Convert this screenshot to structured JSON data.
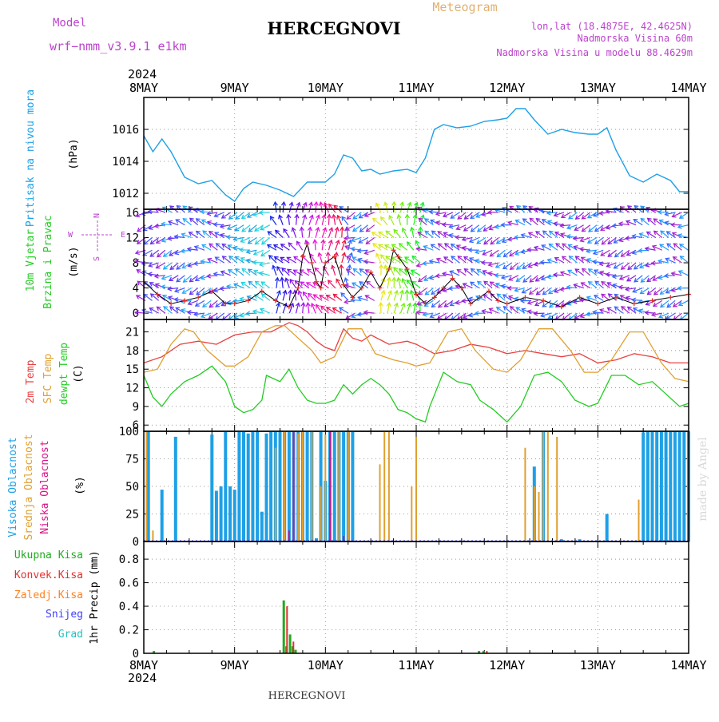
{
  "header": {
    "model_label": "Model",
    "model_name": "wrf−nmm_v3.9.1 e1km",
    "station": "HERCEGNOVI",
    "meteogram": "Meteogram",
    "lonlat": "lon,lat (18.4875E, 42.4625N)",
    "altitude": "Nadmorska Visina 60m",
    "model_altitude": "Nadmorska Visina u modelu 88.4629m",
    "footer_station": "HERCEGNOVI",
    "watermark": "made by Angel"
  },
  "colors": {
    "pressure": "#1ea0e6",
    "temp2m": "#e84040",
    "sfc": "#e0a030",
    "dewpt": "#22cc22",
    "high_cloud": "#1ea0e6",
    "mid_cloud": "#e0a030",
    "low_cloud": "#dd1188",
    "total_precip": "#22aa22",
    "conv_precip": "#e03030",
    "frz_precip": "#ff8020",
    "snow": "#4040ff",
    "grad": "#20c0c0",
    "wind_speed": "#e03030"
  },
  "time_axis": {
    "year": "2024",
    "labels": [
      "8MAY",
      "9MAY",
      "10MAY",
      "11MAY",
      "12MAY",
      "13MAY",
      "14MAY"
    ]
  },
  "chart_data": [
    {
      "type": "line",
      "name": "pressure",
      "ylabel_top": "Pritisak na nivou mora",
      "ylabel": "(hPa)",
      "yticks": [
        "1012",
        "1014",
        "1016"
      ],
      "ylim": [
        1011,
        1018
      ],
      "x_days": [
        0,
        0.1,
        0.2,
        0.3,
        0.45,
        0.6,
        0.75,
        0.9,
        1.0,
        1.1,
        1.2,
        1.35,
        1.5,
        1.65,
        1.8,
        1.9,
        2.0,
        2.1,
        2.2,
        2.3,
        2.4,
        2.5,
        2.6,
        2.75,
        2.9,
        3.0,
        3.1,
        3.2,
        3.3,
        3.45,
        3.6,
        3.75,
        3.9,
        4.0,
        4.1,
        4.2,
        4.3,
        4.45,
        4.6,
        4.75,
        4.9,
        5.0,
        5.1,
        5.2,
        5.35,
        5.5,
        5.65,
        5.8,
        5.9,
        6.0
      ],
      "values": [
        1015.6,
        1014.6,
        1015.4,
        1014.6,
        1013.0,
        1012.6,
        1012.8,
        1011.9,
        1011.5,
        1012.3,
        1012.7,
        1012.5,
        1012.2,
        1011.8,
        1012.7,
        1012.7,
        1012.7,
        1013.2,
        1014.4,
        1014.2,
        1013.4,
        1013.5,
        1013.2,
        1013.4,
        1013.5,
        1013.3,
        1014.2,
        1016.0,
        1016.3,
        1016.1,
        1016.2,
        1016.5,
        1016.6,
        1016.7,
        1017.3,
        1017.3,
        1016.6,
        1015.7,
        1016.0,
        1015.8,
        1015.7,
        1015.7,
        1016.1,
        1014.7,
        1013.1,
        1012.7,
        1013.2,
        1012.8,
        1012.1,
        1012.1
      ]
    },
    {
      "type": "line",
      "name": "wind",
      "ylabel_top": "10m Vjetar",
      "ylabel_top2": "Brzina i Pravac",
      "ylabel": "(m/s)",
      "compass": [
        "N",
        "E",
        "W",
        "S"
      ],
      "yticks": [
        "0",
        "4",
        "8",
        "12",
        "16"
      ],
      "ylim": [
        -1,
        16.5
      ],
      "x_days": [
        0,
        0.15,
        0.3,
        0.45,
        0.6,
        0.75,
        0.9,
        1.0,
        1.15,
        1.3,
        1.45,
        1.6,
        1.7,
        1.75,
        1.8,
        1.85,
        1.9,
        1.95,
        2.0,
        2.1,
        2.2,
        2.3,
        2.4,
        2.5,
        2.6,
        2.7,
        2.75,
        2.8,
        2.9,
        3.0,
        3.1,
        3.2,
        3.3,
        3.4,
        3.5,
        3.6,
        3.7,
        3.8,
        3.9,
        4.0,
        4.2,
        4.4,
        4.6,
        4.8,
        5.0,
        5.2,
        5.4,
        5.6,
        5.8,
        6.0
      ],
      "values": [
        5,
        3,
        1.5,
        2,
        2.5,
        3.5,
        1.5,
        1.5,
        2,
        3.5,
        2,
        1,
        4,
        9,
        11,
        8,
        5,
        4,
        8,
        9,
        4.5,
        2.5,
        4,
        6.5,
        4,
        7,
        10,
        9,
        7,
        3,
        1.5,
        2.5,
        4,
        5.5,
        4,
        1.5,
        2.5,
        3.5,
        2,
        1.5,
        2.5,
        2,
        1,
        2.5,
        1.5,
        2.5,
        1.5,
        2,
        2.5,
        3
      ]
    },
    {
      "type": "line",
      "name": "temperature",
      "ylabel_top": "2m Temp",
      "ylabel_top2": "SFC Temp",
      "ylabel_top3": "dewpt Temp",
      "ylabel": "(C)",
      "yticks": [
        "6",
        "9",
        "12",
        "15",
        "18",
        "21"
      ],
      "ylim": [
        5,
        23
      ],
      "series": [
        {
          "name": "2m Temp",
          "x_days": [
            0,
            0.2,
            0.4,
            0.6,
            0.8,
            1.0,
            1.2,
            1.4,
            1.6,
            1.7,
            1.8,
            1.9,
            2.0,
            2.1,
            2.2,
            2.3,
            2.4,
            2.5,
            2.7,
            2.9,
            3.0,
            3.2,
            3.4,
            3.6,
            3.8,
            4.0,
            4.2,
            4.4,
            4.6,
            4.8,
            5.0,
            5.2,
            5.4,
            5.6,
            5.8,
            6.0
          ],
          "values": [
            16,
            17,
            19,
            19.5,
            19,
            20.5,
            21,
            21,
            22.5,
            22,
            21,
            19.5,
            18.5,
            18,
            21.5,
            20,
            19.5,
            20.5,
            19,
            19.5,
            19,
            17.5,
            18,
            19,
            18.5,
            17.5,
            18,
            17.5,
            17,
            17.5,
            16,
            16.5,
            17.5,
            17,
            16,
            16
          ]
        },
        {
          "name": "SFC Temp",
          "x_days": [
            0,
            0.15,
            0.3,
            0.45,
            0.55,
            0.7,
            0.9,
            1.0,
            1.15,
            1.3,
            1.45,
            1.55,
            1.7,
            1.85,
            1.95,
            2.1,
            2.25,
            2.4,
            2.55,
            2.75,
            2.9,
            3.0,
            3.15,
            3.35,
            3.5,
            3.65,
            3.85,
            4.0,
            4.15,
            4.35,
            4.5,
            4.7,
            4.85,
            5.0,
            5.15,
            5.35,
            5.5,
            5.7,
            5.85,
            6.0
          ],
          "values": [
            14.5,
            15,
            19,
            21.5,
            21,
            18,
            15.5,
            15.5,
            17,
            21,
            22,
            22,
            20,
            18,
            16,
            17,
            21.5,
            21.5,
            17.5,
            16.5,
            16,
            15.5,
            16,
            21,
            21.5,
            18,
            15,
            14.5,
            16.5,
            21.5,
            21.5,
            18,
            14.5,
            14.5,
            16.5,
            21,
            21,
            16,
            13.5,
            13
          ]
        },
        {
          "name": "dewpt Temp",
          "x_days": [
            0,
            0.1,
            0.2,
            0.3,
            0.45,
            0.6,
            0.75,
            0.9,
            1.0,
            1.1,
            1.2,
            1.3,
            1.35,
            1.5,
            1.6,
            1.7,
            1.8,
            1.9,
            2.0,
            2.1,
            2.2,
            2.3,
            2.4,
            2.5,
            2.6,
            2.7,
            2.8,
            2.9,
            3.0,
            3.1,
            3.15,
            3.3,
            3.45,
            3.6,
            3.7,
            3.85,
            4.0,
            4.15,
            4.3,
            4.45,
            4.6,
            4.75,
            4.9,
            5.0,
            5.15,
            5.3,
            5.45,
            5.6,
            5.75,
            5.9,
            6.0
          ],
          "values": [
            14,
            10.5,
            9,
            11,
            13,
            14,
            15.5,
            13,
            9,
            8,
            8.5,
            10,
            14,
            13,
            15,
            12,
            10,
            9.5,
            9.5,
            10,
            12.5,
            11,
            12.5,
            13.5,
            12.5,
            11,
            8.5,
            8,
            7,
            6.5,
            9,
            14.5,
            13,
            12.5,
            10,
            8.5,
            6.5,
            9,
            14,
            14.5,
            13,
            10,
            9,
            9.5,
            14,
            14,
            12.5,
            13,
            11,
            9,
            9.5
          ]
        }
      ]
    },
    {
      "type": "bar",
      "name": "cloud_cover",
      "ylabel_top": "Visoka Oblacnost",
      "ylabel_top2": "Srednja Oblacnost",
      "ylabel_top3": "Niska Oblacnost",
      "ylabel": "(%)",
      "yticks": [
        "0",
        "25",
        "50",
        "75",
        "100"
      ],
      "ylim": [
        0,
        100
      ],
      "series": [
        {
          "name": "Visoka Oblacnost",
          "x_days": [
            0.05,
            0.2,
            0.35,
            0.75,
            0.8,
            0.85,
            0.9,
            0.95,
            1.0,
            1.05,
            1.1,
            1.15,
            1.2,
            1.25,
            1.3,
            1.35,
            1.4,
            1.45,
            1.5,
            1.55,
            1.6,
            1.65,
            1.7,
            1.75,
            1.8,
            1.85,
            1.9,
            1.95,
            2.0,
            2.05,
            2.1,
            2.15,
            2.2,
            2.25,
            2.3,
            4.3,
            4.4,
            4.6,
            4.8,
            5.1,
            5.5,
            5.55,
            5.6,
            5.65,
            5.7,
            5.75,
            5.8,
            5.85,
            5.9,
            5.95,
            6.0
          ],
          "values": [
            100,
            47,
            95,
            97,
            46,
            50,
            100,
            50,
            47,
            100,
            100,
            98,
            100,
            100,
            27,
            98,
            100,
            100,
            100,
            100,
            100,
            100,
            100,
            100,
            100,
            100,
            3,
            100,
            55,
            100,
            100,
            100,
            100,
            100,
            100,
            68,
            100,
            2,
            2,
            25,
            99,
            100,
            100,
            100,
            100,
            100,
            100,
            100,
            100,
            100,
            100
          ]
        },
        {
          "name": "Srednja Oblacnost",
          "x_days": [
            0.03,
            0.1,
            1.45,
            1.55,
            1.65,
            1.7,
            1.75,
            1.85,
            1.95,
            2.0,
            2.05,
            2.15,
            2.25,
            2.6,
            2.65,
            2.7,
            2.95,
            3.0,
            4.2,
            4.3,
            4.35,
            4.4,
            4.45,
            4.55,
            5.45
          ],
          "values": [
            100,
            10,
            85,
            100,
            100,
            98,
            100,
            100,
            50,
            97,
            100,
            100,
            100,
            70,
            100,
            100,
            50,
            95,
            85,
            50,
            45,
            100,
            100,
            95,
            38
          ]
        },
        {
          "name": "Niska Oblacnost",
          "x_days": [
            1.6,
            1.65,
            2.05,
            2.2
          ],
          "values": [
            10,
            100,
            100,
            5
          ]
        }
      ]
    },
    {
      "type": "bar",
      "name": "precipitation",
      "ylabel": "1hr Precip (mm)",
      "yticks": [
        "0",
        "0.2",
        "0.4",
        "0.6",
        "0.8"
      ],
      "ylim": [
        0,
        0.95
      ],
      "legend": [
        "Ukupna Kisa",
        "Konvek.Kisa",
        "Zaledj.Kisa",
        "Snijeg",
        "Grad"
      ],
      "series": [
        {
          "name": "Ukupna Kisa",
          "x_days": [
            0.12,
            1.55,
            1.58,
            1.62,
            1.65,
            1.68,
            3.7,
            3.75
          ],
          "values": [
            0.02,
            0.45,
            0.06,
            0.16,
            0.06,
            0.03,
            0.02,
            0.02
          ]
        },
        {
          "name": "Konvek.Kisa",
          "x_days": [
            1.56,
            1.63,
            3.76
          ],
          "values": [
            0.4,
            0.1,
            0.02
          ]
        }
      ]
    }
  ]
}
